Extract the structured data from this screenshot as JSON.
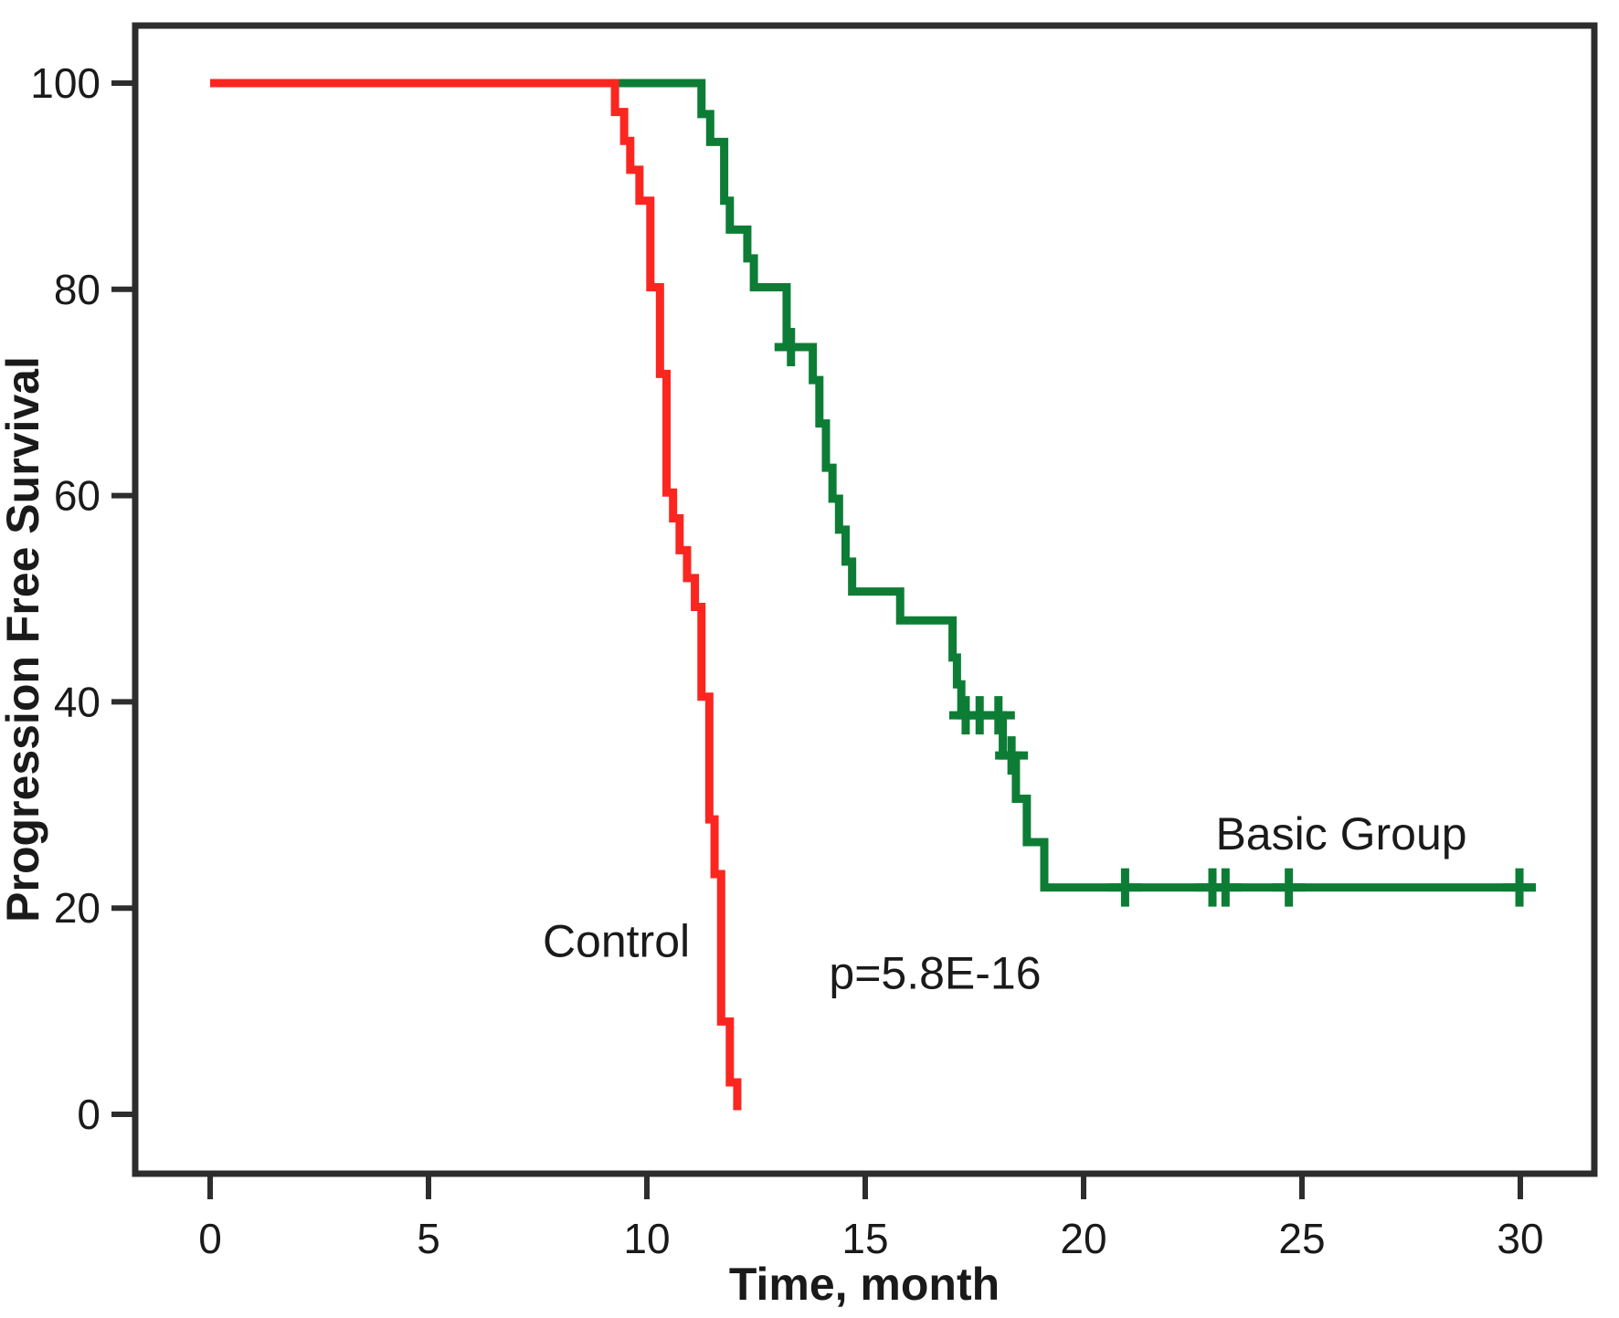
{
  "figure": {
    "background": "#ffffff",
    "axis_color": "#2d2d2d",
    "text_color": "#1a1a1a"
  },
  "chart_data": {
    "type": "line",
    "subtype": "kaplan-meier-step-survival",
    "title": "",
    "xlabel": "Time, month",
    "ylabel": "Progression Free Survival",
    "xlim": [
      0,
      31.7
    ],
    "ylim": [
      0,
      100
    ],
    "x_ticks": [
      0,
      5,
      10,
      15,
      20,
      25,
      30
    ],
    "y_ticks": [
      0,
      20,
      40,
      60,
      80,
      100
    ],
    "grid": false,
    "legend_position": "inline-annotations",
    "p_value": "p=5.8E-16",
    "series": [
      {
        "name": "Basic Group",
        "color": "#0d7d35",
        "end_t": 30.35,
        "steps": [
          [
            0,
            100
          ],
          [
            11.25,
            97.0
          ],
          [
            11.45,
            94.3
          ],
          [
            11.77,
            88.6
          ],
          [
            11.9,
            85.8
          ],
          [
            12.3,
            83.0
          ],
          [
            12.45,
            80.2
          ],
          [
            13.2,
            74.4
          ],
          [
            13.8,
            71.2
          ],
          [
            13.95,
            67.0
          ],
          [
            14.1,
            62.7
          ],
          [
            14.25,
            59.7
          ],
          [
            14.4,
            56.7
          ],
          [
            14.55,
            53.6
          ],
          [
            14.7,
            50.7
          ],
          [
            15.8,
            47.9
          ],
          [
            17.0,
            44.3
          ],
          [
            17.1,
            41.7
          ],
          [
            17.2,
            38.7
          ],
          [
            18.15,
            34.8
          ],
          [
            18.45,
            30.6
          ],
          [
            18.7,
            26.4
          ],
          [
            19.1,
            22.0
          ]
        ],
        "censors": [
          [
            13.3,
            74.4
          ],
          [
            17.3,
            38.7
          ],
          [
            17.62,
            38.7
          ],
          [
            18.05,
            38.7
          ],
          [
            18.35,
            34.8
          ],
          [
            20.95,
            22.0
          ],
          [
            22.95,
            22.0
          ],
          [
            23.25,
            22.0
          ],
          [
            24.7,
            22.0
          ],
          [
            29.98,
            22.0
          ]
        ]
      },
      {
        "name": "Control",
        "color": "#fb2620",
        "end_t": 12.07,
        "steps": [
          [
            0,
            100
          ],
          [
            9.27,
            97.2
          ],
          [
            9.48,
            94.4
          ],
          [
            9.62,
            91.6
          ],
          [
            9.83,
            88.6
          ],
          [
            10.08,
            80.2
          ],
          [
            10.3,
            71.8
          ],
          [
            10.45,
            60.3
          ],
          [
            10.6,
            57.8
          ],
          [
            10.75,
            54.7
          ],
          [
            10.92,
            52.0
          ],
          [
            11.1,
            49.2
          ],
          [
            11.25,
            40.5
          ],
          [
            11.43,
            28.6
          ],
          [
            11.55,
            23.3
          ],
          [
            11.7,
            9.0
          ],
          [
            11.9,
            3.1
          ],
          [
            12.07,
            0.4
          ]
        ],
        "censors": []
      }
    ],
    "annotations": [
      {
        "text": "Control",
        "t": 9.3,
        "s": 16.8
      },
      {
        "text": "p=5.8E-16",
        "t": 16.6,
        "s": 13.7
      },
      {
        "text": "Basic Group",
        "t": 25.9,
        "s": 27.2
      }
    ]
  }
}
